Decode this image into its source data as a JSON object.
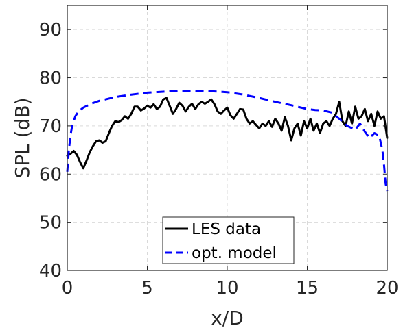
{
  "chart_data": {
    "type": "line",
    "title": "",
    "xlabel": "x/D",
    "ylabel": "SPL (dB)",
    "xlim": [
      0,
      20
    ],
    "ylim": [
      40,
      95
    ],
    "xticks": [
      "0",
      "5",
      "10",
      "15",
      "20"
    ],
    "yticks": [
      "40",
      "50",
      "60",
      "70",
      "80",
      "90"
    ],
    "grid": true,
    "legend_position": "bottom-center",
    "series": [
      {
        "name": "LES data",
        "color": "#000000",
        "style": "solid",
        "x": [
          0,
          0.2,
          0.4,
          0.6,
          0.8,
          1.0,
          1.2,
          1.4,
          1.6,
          1.8,
          2.0,
          2.2,
          2.4,
          2.6,
          2.8,
          3.0,
          3.2,
          3.4,
          3.6,
          3.8,
          4.0,
          4.2,
          4.4,
          4.6,
          4.8,
          5.0,
          5.2,
          5.4,
          5.6,
          5.8,
          6.0,
          6.2,
          6.4,
          6.6,
          6.8,
          7.0,
          7.2,
          7.4,
          7.6,
          7.8,
          8.0,
          8.2,
          8.4,
          8.6,
          8.8,
          9.0,
          9.2,
          9.4,
          9.6,
          9.8,
          10.0,
          10.2,
          10.4,
          10.6,
          10.8,
          11.0,
          11.2,
          11.4,
          11.6,
          11.8,
          12.0,
          12.2,
          12.4,
          12.6,
          12.8,
          13.0,
          13.2,
          13.4,
          13.6,
          13.8,
          14.0,
          14.2,
          14.4,
          14.6,
          14.8,
          15.0,
          15.2,
          15.4,
          15.6,
          15.8,
          16.0,
          16.2,
          16.4,
          16.6,
          16.8,
          17.0,
          17.2,
          17.4,
          17.6,
          17.8,
          18.0,
          18.2,
          18.4,
          18.6,
          18.8,
          19.0,
          19.2,
          19.4,
          19.6,
          19.8,
          20.0
        ],
        "y": [
          63.8,
          64.2,
          64.8,
          64.0,
          62.5,
          61.2,
          62.8,
          64.5,
          65.8,
          66.8,
          67.0,
          66.5,
          66.8,
          68.5,
          70.0,
          71.0,
          70.8,
          71.2,
          72.0,
          71.5,
          72.5,
          74.0,
          74.0,
          73.2,
          73.6,
          74.2,
          73.8,
          74.5,
          73.5,
          74.0,
          75.5,
          75.8,
          74.2,
          72.5,
          73.5,
          74.8,
          74.2,
          73.0,
          74.0,
          74.6,
          73.5,
          74.5,
          75.0,
          74.6,
          75.0,
          75.5,
          74.5,
          73.0,
          72.5,
          73.2,
          73.8,
          72.2,
          71.5,
          72.5,
          73.5,
          73.4,
          71.5,
          70.5,
          71.0,
          70.2,
          69.5,
          70.5,
          70.0,
          71.0,
          69.8,
          71.5,
          70.5,
          69.0,
          71.8,
          70.0,
          67.0,
          69.5,
          70.5,
          68.0,
          71.0,
          69.5,
          71.5,
          69.0,
          70.5,
          68.5,
          70.5,
          71.0,
          70.0,
          71.5,
          72.5,
          75.0,
          71.0,
          70.0,
          73.0,
          70.5,
          74.0,
          71.5,
          72.0,
          73.5,
          71.0,
          72.5,
          70.0,
          73.0,
          71.5,
          72.0,
          67.5
        ]
      },
      {
        "name": "opt. model",
        "color": "#0000ff",
        "style": "dashed",
        "x": [
          0,
          0.1,
          0.2,
          0.3,
          0.5,
          0.7,
          1.0,
          1.5,
          2.0,
          3.0,
          4.0,
          5.0,
          6.0,
          7.0,
          8.0,
          9.0,
          10.0,
          11.0,
          12.0,
          13.0,
          14.0,
          15.0,
          15.5,
          16.0,
          16.5,
          17.0,
          17.5,
          18.0,
          18.3,
          18.6,
          18.9,
          19.2,
          19.5,
          19.7,
          19.8,
          19.9,
          20.0
        ],
        "y": [
          60.5,
          65.0,
          68.0,
          70.0,
          72.0,
          73.0,
          73.8,
          74.6,
          75.2,
          76.0,
          76.5,
          76.9,
          77.1,
          77.3,
          77.3,
          77.2,
          77.0,
          76.5,
          75.8,
          75.0,
          74.3,
          73.5,
          73.3,
          73.2,
          72.8,
          71.5,
          70.0,
          69.2,
          70.5,
          68.8,
          67.5,
          68.5,
          68.0,
          65.0,
          62.0,
          58.0,
          56.5
        ]
      }
    ]
  }
}
